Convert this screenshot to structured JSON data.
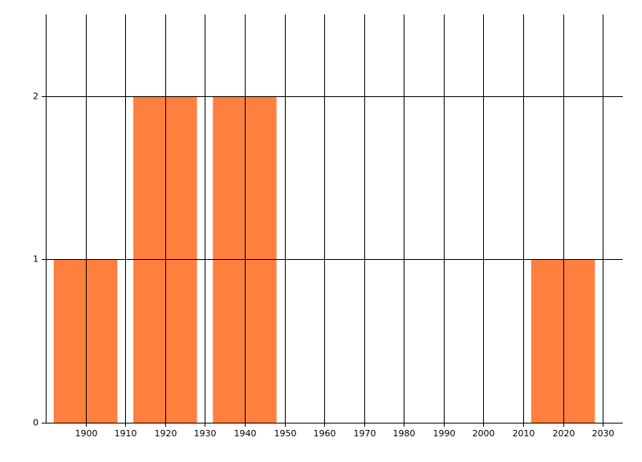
{
  "chart_data": {
    "type": "bar",
    "x": [
      1900,
      1920,
      1940,
      2020
    ],
    "values": [
      1,
      2,
      2,
      1
    ],
    "bar_width": 16,
    "color": "#ff7f3f",
    "xlim": [
      1890,
      2035
    ],
    "xticks": [
      1900,
      1910,
      1920,
      1930,
      1940,
      1950,
      1960,
      1970,
      1980,
      1990,
      2000,
      2010,
      2020,
      2030
    ],
    "ylim": [
      0,
      2.5
    ],
    "yticks": [
      0,
      1,
      2
    ],
    "grid": true
  }
}
